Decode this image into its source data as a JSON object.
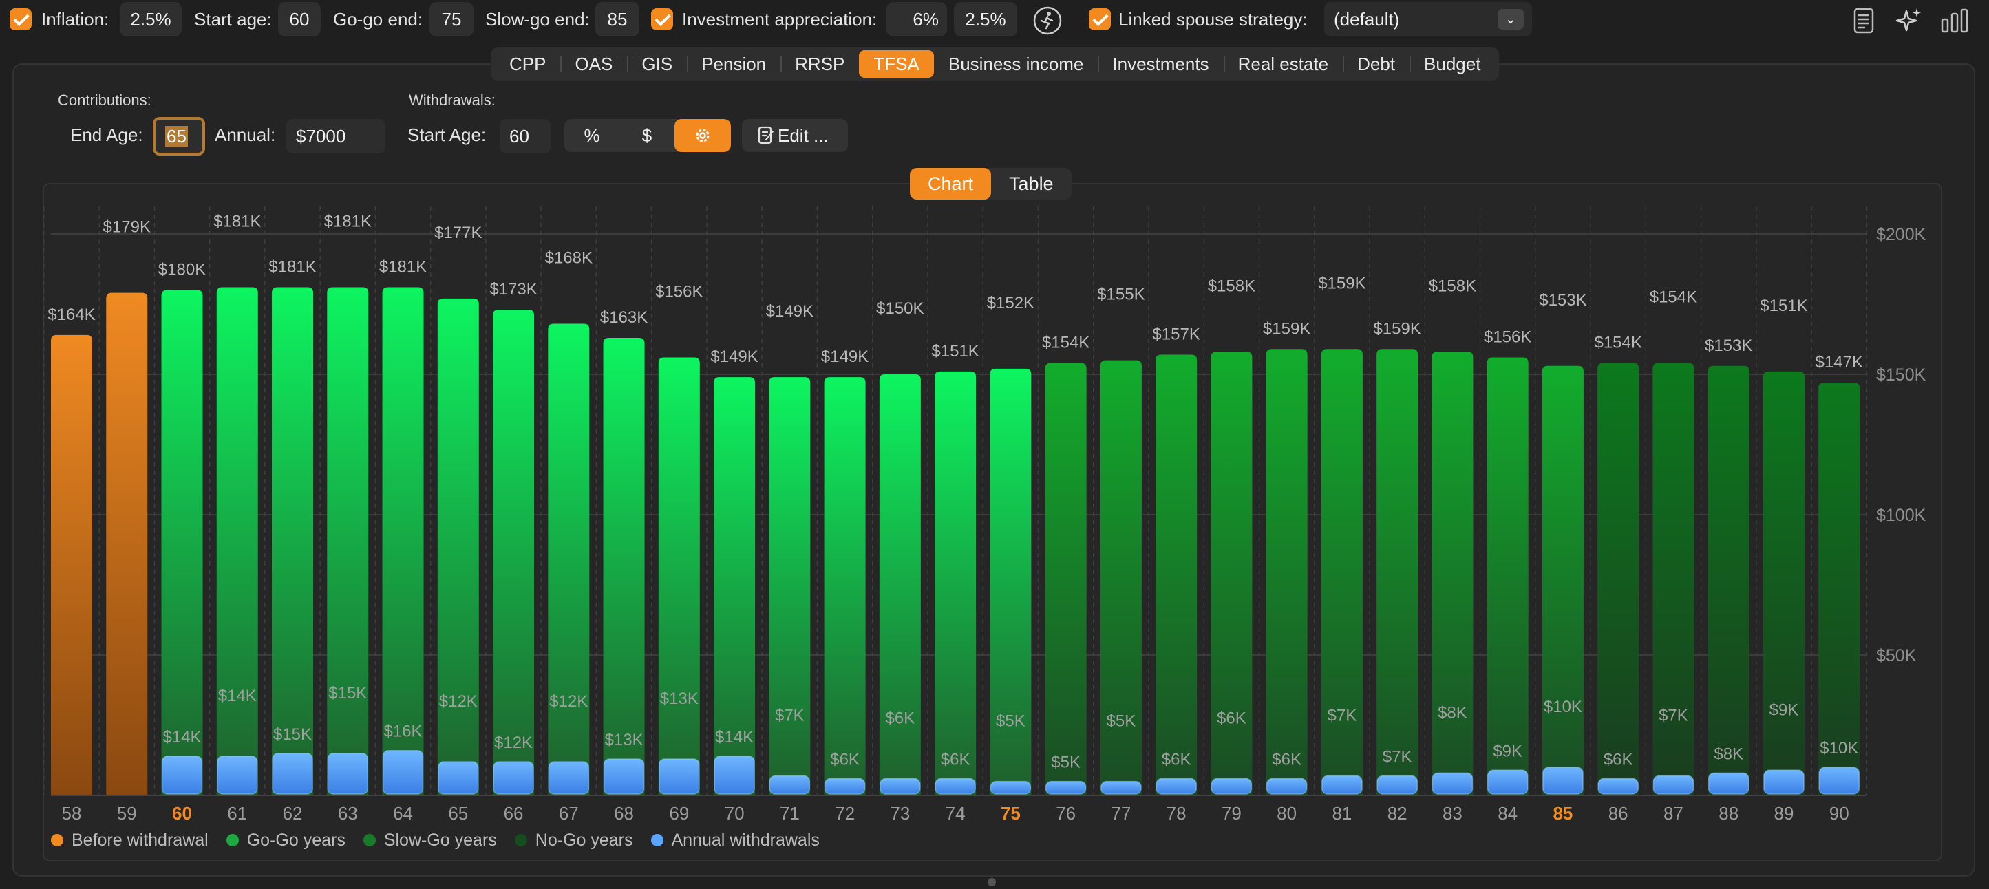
{
  "settings": {
    "inflation_label": "Inflation:",
    "inflation_value": "2.5%",
    "start_age_label": "Start age:",
    "start_age_value": "60",
    "gogo_end_label": "Go-go end:",
    "gogo_end_value": "75",
    "slowgo_end_label": "Slow-go end:",
    "slowgo_end_value": "85",
    "appreciation_label": "Investment appreciation:",
    "appreciation_value1": "6%",
    "appreciation_value2": "2.5%",
    "spouse_label": "Linked spouse strategy:",
    "spouse_value": "(default)"
  },
  "tabs": [
    "CPP",
    "OAS",
    "GIS",
    "Pension",
    "RRSP",
    "TFSA",
    "Business income",
    "Investments",
    "Real estate",
    "Debt",
    "Budget"
  ],
  "active_tab": "TFSA",
  "tfsa": {
    "contributions_header": "Contributions:",
    "end_age_label": "End Age:",
    "end_age_value": "65",
    "annual_label": "Annual:",
    "annual_value": "$7000",
    "withdrawals_header": "Withdrawals:",
    "start_age_label": "Start Age:",
    "start_age_value": "60",
    "mode_percent": "%",
    "mode_dollar": "$",
    "edit_label": "Edit ..."
  },
  "view_toggle": {
    "chart": "Chart",
    "table": "Table",
    "active": "Chart"
  },
  "colors": {
    "accent": "#f28a1f",
    "before_withdrawal": "#f28a1f",
    "gogo": "#0cf35f",
    "slowgo": "#10a82a",
    "nogo": "#0e7a1e",
    "withdrawal": "#5aa6ff"
  },
  "chart_data": {
    "type": "bar",
    "x": [
      58,
      59,
      60,
      61,
      62,
      63,
      64,
      65,
      66,
      67,
      68,
      69,
      70,
      71,
      72,
      73,
      74,
      75,
      76,
      77,
      78,
      79,
      80,
      81,
      82,
      83,
      84,
      85,
      86,
      87,
      88,
      89,
      90
    ],
    "highlight_ticks": [
      60,
      75,
      85
    ],
    "series": [
      {
        "name": "Before withdrawal",
        "values": [
          164,
          179,
          180,
          181,
          181,
          181,
          181,
          177,
          173,
          168,
          163,
          156,
          149,
          149,
          149,
          150,
          151,
          152,
          154,
          155,
          157,
          158,
          159,
          159,
          159,
          158,
          156,
          153,
          154,
          154,
          153,
          151,
          147
        ],
        "labels": [
          "$164K",
          "$179K",
          "$180K",
          "$181K",
          "$181K",
          "$181K",
          "$181K",
          "$177K",
          "$173K",
          "$168K",
          "$163K",
          "$156K",
          "$149K",
          "$149K",
          "$149K",
          "$150K",
          "$151K",
          "$152K",
          "$154K",
          "$155K",
          "$157K",
          "$158K",
          "$159K",
          "$159K",
          "$159K",
          "$158K",
          "$156K",
          "$153K",
          "$154K",
          "$154K",
          "$153K",
          "$151K",
          "$147K"
        ]
      },
      {
        "name": "Annual withdrawals",
        "values": [
          0,
          0,
          14,
          14,
          15,
          15,
          16,
          12,
          12,
          12,
          13,
          13,
          14,
          7,
          6,
          6,
          6,
          5,
          5,
          5,
          6,
          6,
          6,
          7,
          7,
          8,
          9,
          10,
          6,
          7,
          8,
          9,
          10
        ],
        "labels": [
          "",
          "",
          "$14K",
          "$14K",
          "$15K",
          "$15K",
          "$16K",
          "$12K",
          "$12K",
          "$12K",
          "$13K",
          "$13K",
          "$14K",
          "$7K",
          "$6K",
          "$6K",
          "$6K",
          "$5K",
          "$5K",
          "$5K",
          "$6K",
          "$6K",
          "$6K",
          "$7K",
          "$7K",
          "$8K",
          "$9K",
          "$10K",
          "$6K",
          "$7K",
          "$8K",
          "$9K",
          "$10K"
        ]
      }
    ],
    "phases": [
      "before",
      "before",
      "gogo",
      "gogo",
      "gogo",
      "gogo",
      "gogo",
      "gogo",
      "gogo",
      "gogo",
      "gogo",
      "gogo",
      "gogo",
      "gogo",
      "gogo",
      "gogo",
      "gogo",
      "gogo",
      "slowgo",
      "slowgo",
      "slowgo",
      "slowgo",
      "slowgo",
      "slowgo",
      "slowgo",
      "slowgo",
      "slowgo",
      "slowgo",
      "nogo",
      "nogo",
      "nogo",
      "nogo",
      "nogo"
    ],
    "y_unit": "thousand dollars",
    "ylim": [
      0,
      200
    ],
    "yticks": [
      50,
      100,
      150,
      200
    ],
    "ytick_labels": [
      "$50K",
      "$100K",
      "$150K",
      "$200K"
    ],
    "legend": [
      "Before withdrawal",
      "Go-Go years",
      "Slow-Go years",
      "No-Go years",
      "Annual withdrawals"
    ],
    "legend_position": "bottom-left",
    "grid": true
  }
}
